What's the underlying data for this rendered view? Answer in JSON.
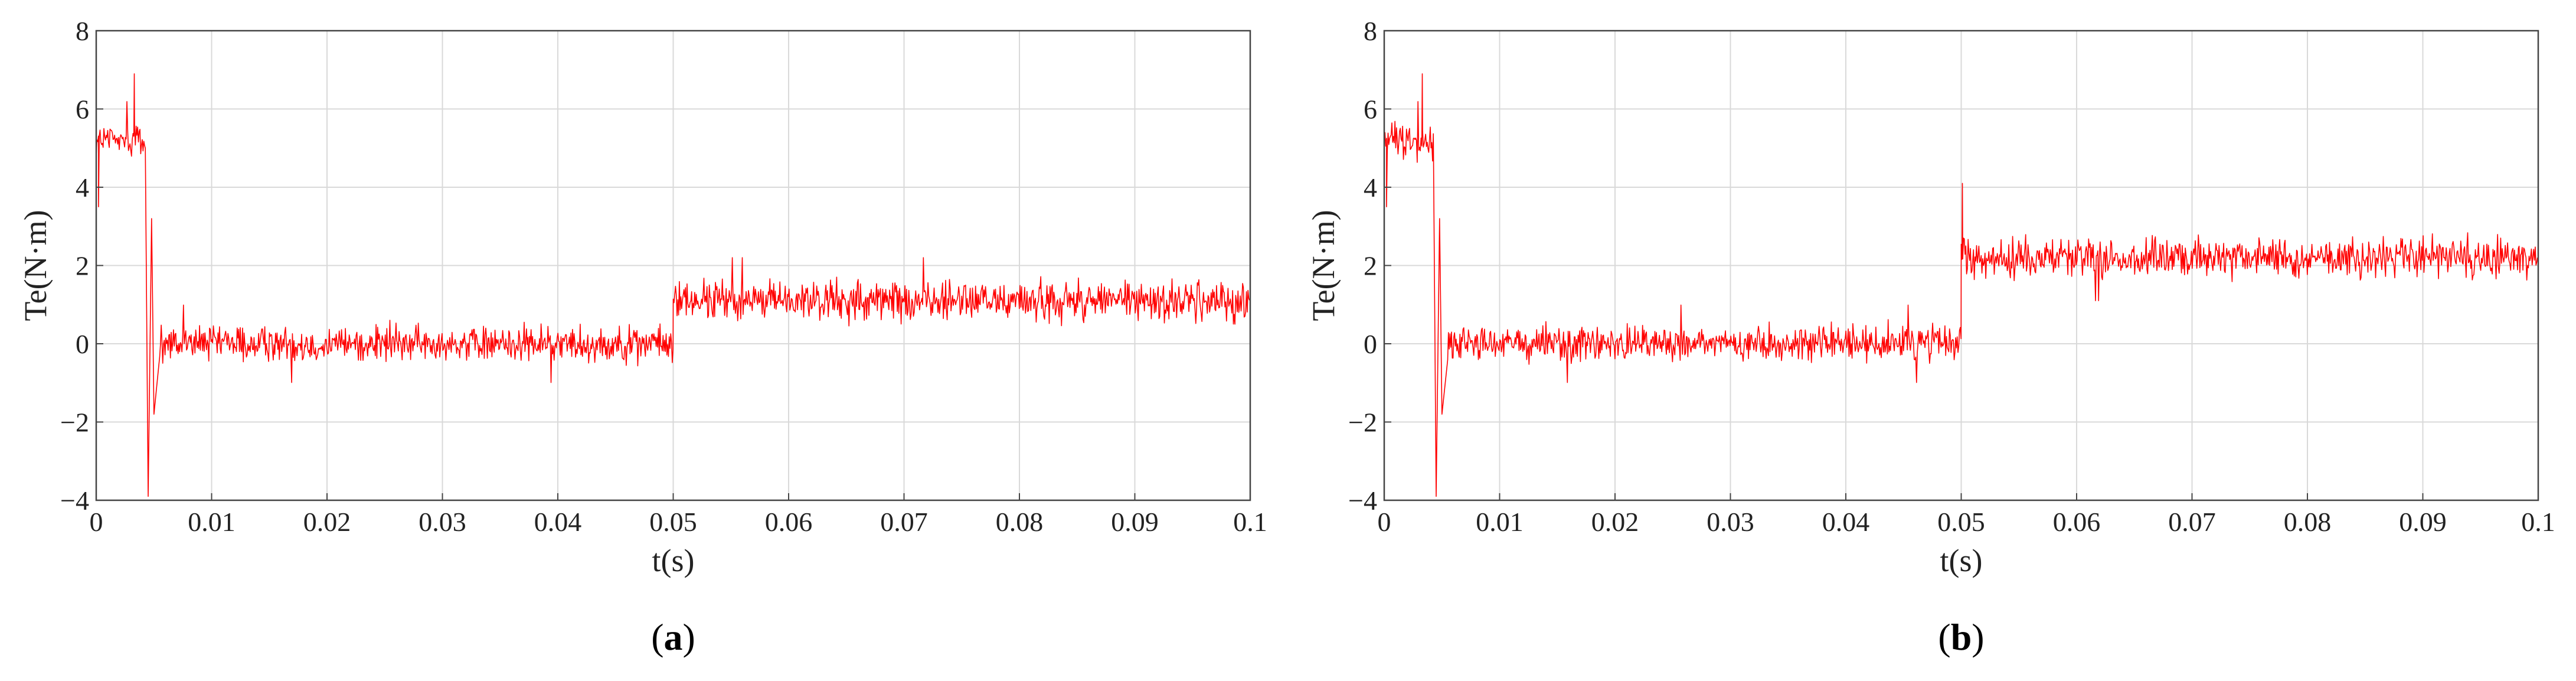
{
  "chart_data": [
    {
      "type": "line",
      "panel_label": {
        "open": "(",
        "letter": "a",
        "close": ")"
      },
      "xlabel": "t(s)",
      "ylabel": "Te(N·m)",
      "xlim": [
        0,
        0.1
      ],
      "ylim": [
        -4,
        8
      ],
      "xticks": [
        0,
        0.01,
        0.02,
        0.03,
        0.04,
        0.05,
        0.06,
        0.07,
        0.08,
        0.09,
        0.1
      ],
      "xtick_labels": [
        "0",
        "0.01",
        "0.02",
        "0.03",
        "0.04",
        "0.05",
        "0.06",
        "0.07",
        "0.08",
        "0.09",
        "0.1"
      ],
      "yticks": [
        -4,
        -2,
        0,
        2,
        4,
        6,
        8
      ],
      "ytick_labels": [
        "−4",
        "−2",
        "0",
        "2",
        "4",
        "6",
        "8"
      ],
      "grid": true,
      "series_color": "#ff0000",
      "series": [
        {
          "segments": [
            {
              "t_start": 0.0,
              "t_end": 0.0043,
              "mean": 5.2,
              "ripple": 0.45
            },
            {
              "t_start": 0.0055,
              "t_end": 0.05,
              "mean": 0.0,
              "ripple": 0.45
            },
            {
              "t_start": 0.05,
              "t_end": 0.1,
              "mean": 1.1,
              "ripple": 0.5
            }
          ],
          "peaks": [
            [
              0.0002,
              3.5
            ],
            [
              0.0033,
              6.9
            ],
            [
              0.0045,
              -3.9
            ],
            [
              0.0048,
              3.2
            ],
            [
              0.005,
              -1.8
            ]
          ]
        }
      ]
    },
    {
      "type": "line",
      "panel_label": {
        "open": "(",
        "letter": "b",
        "close": ")"
      },
      "xlabel": "t(s)",
      "ylabel": "Te(N·m)",
      "xlim": [
        0,
        0.1
      ],
      "ylim": [
        -4,
        8
      ],
      "xticks": [
        0,
        0.01,
        0.02,
        0.03,
        0.04,
        0.05,
        0.06,
        0.07,
        0.08,
        0.09,
        0.1
      ],
      "xtick_labels": [
        "0",
        "0.01",
        "0.02",
        "0.03",
        "0.04",
        "0.05",
        "0.06",
        "0.07",
        "0.08",
        "0.09",
        "0.1"
      ],
      "yticks": [
        -4,
        -2,
        0,
        2,
        4,
        6,
        8
      ],
      "ytick_labels": [
        "−4",
        "−2",
        "0",
        "2",
        "4",
        "6",
        "8"
      ],
      "grid": true,
      "series_color": "#ff0000",
      "series": [
        {
          "segments": [
            {
              "t_start": 0.0,
              "t_end": 0.0043,
              "mean": 5.2,
              "ripple": 0.45
            },
            {
              "t_start": 0.0055,
              "t_end": 0.05,
              "mean": 0.0,
              "ripple": 0.45
            },
            {
              "t_start": 0.05,
              "t_end": 0.1,
              "mean": 2.2,
              "ripple": 0.5
            }
          ],
          "peaks": [
            [
              0.0002,
              3.5
            ],
            [
              0.0033,
              6.9
            ],
            [
              0.0045,
              -3.9
            ],
            [
              0.0048,
              3.2
            ],
            [
              0.005,
              -1.8
            ],
            [
              0.0501,
              4.1
            ]
          ]
        }
      ]
    }
  ]
}
